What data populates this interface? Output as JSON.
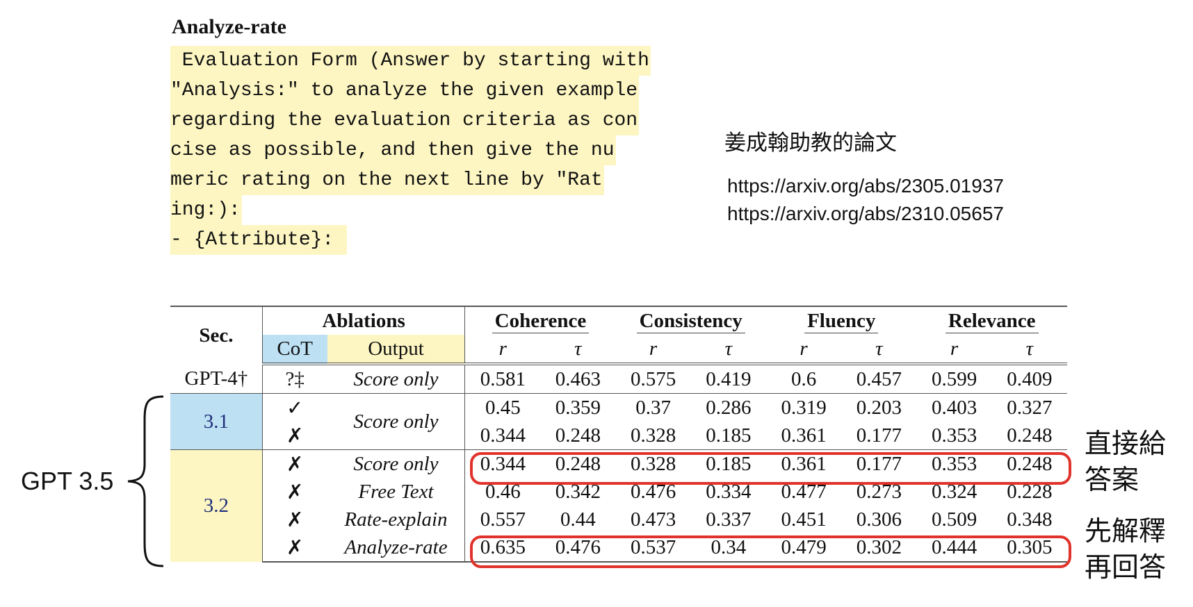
{
  "heading": "Analyze-rate",
  "prompt_lines": [
    " Evaluation Form (Answer by starting with",
    "\"Analysis:\" to analyze the given example",
    "regarding the evaluation criteria as con",
    "cise as possible, and then give the nu",
    "meric rating on the next line by \"Rat",
    "ing:):",
    "- {Attribute}: "
  ],
  "note_title": "姜成翰助教的論文",
  "links": [
    "https://arxiv.org/abs/2305.01937",
    "https://arxiv.org/abs/2310.05657"
  ],
  "table": {
    "sec_header": "Sec.",
    "ablations_header": "Ablations",
    "cot_header": "CoT",
    "output_header": "Output",
    "metrics": [
      "Coherence",
      "Consistency",
      "Fluency",
      "Relevance"
    ],
    "sub": [
      "r",
      "τ"
    ],
    "rows": [
      {
        "sec": "GPT-4†",
        "cot": "?‡",
        "output": "Score only",
        "values": [
          "0.581",
          "0.463",
          "0.575",
          "0.419",
          "0.6",
          "0.457",
          "0.599",
          "0.409"
        ]
      },
      {
        "sec": "3.1",
        "cot": "✓",
        "output": "Score only",
        "values": [
          "0.45",
          "0.359",
          "0.37",
          "0.286",
          "0.319",
          "0.203",
          "0.403",
          "0.327"
        ]
      },
      {
        "sec": "",
        "cot": "✗",
        "output": "",
        "values": [
          "0.344",
          "0.248",
          "0.328",
          "0.185",
          "0.361",
          "0.177",
          "0.353",
          "0.248"
        ]
      },
      {
        "sec": "3.2",
        "cot": "✗",
        "output": "Score only",
        "values": [
          "0.344",
          "0.248",
          "0.328",
          "0.185",
          "0.361",
          "0.177",
          "0.353",
          "0.248"
        ]
      },
      {
        "sec": "",
        "cot": "✗",
        "output": "Free Text",
        "values": [
          "0.46",
          "0.342",
          "0.476",
          "0.334",
          "0.477",
          "0.273",
          "0.324",
          "0.228"
        ]
      },
      {
        "sec": "",
        "cot": "✗",
        "output": "Rate-explain",
        "values": [
          "0.557",
          "0.44",
          "0.473",
          "0.337",
          "0.451",
          "0.306",
          "0.509",
          "0.348"
        ]
      },
      {
        "sec": "",
        "cot": "✗",
        "output": "Analyze-rate",
        "values": [
          "0.635",
          "0.476",
          "0.537",
          "0.34",
          "0.479",
          "0.302",
          "0.444",
          "0.305"
        ]
      }
    ]
  },
  "gpt35_label": "GPT 3.5",
  "annotation_direct": [
    "直接給",
    "答案"
  ],
  "annotation_explain": [
    "先解釋",
    "再回答"
  ],
  "colors": {
    "highlight_yellow": "#fdf6c3",
    "highlight_blue": "#bde0f3",
    "red_box": "#e0332b",
    "sec_text": "#1f2d7a"
  }
}
